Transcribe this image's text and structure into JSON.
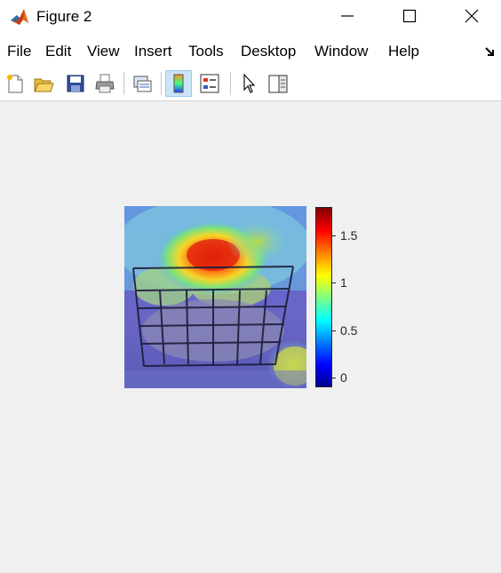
{
  "window": {
    "title": "Figure 2"
  },
  "menu": {
    "items": [
      "File",
      "Edit",
      "View",
      "Insert",
      "Tools",
      "Desktop",
      "Window",
      "Help"
    ]
  },
  "toolbar": {
    "buttons": [
      "new-figure-icon",
      "open-file-icon",
      "save-icon",
      "print-icon",
      "link-plot-icon",
      "insert-colorbar-icon",
      "insert-legend-icon",
      "edit-plot-icon",
      "property-inspector-icon"
    ],
    "active": "insert-colorbar-icon"
  },
  "colorbar": {
    "min": -0.1,
    "max": 1.8,
    "colormap": "jet",
    "ticks": [
      {
        "label": "0",
        "value": 0
      },
      {
        "label": "0.5",
        "value": 0.5
      },
      {
        "label": "1",
        "value": 1
      },
      {
        "label": "1.5",
        "value": 1.5
      }
    ]
  },
  "colors": {
    "background": "#f0f0f0",
    "toolbar_active": "#cce4f7"
  }
}
